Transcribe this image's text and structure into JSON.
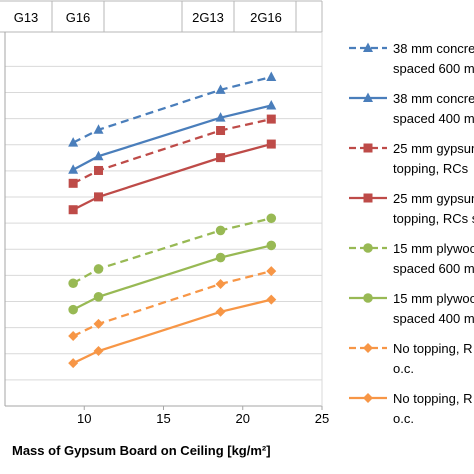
{
  "chart_data": {
    "type": "line",
    "xlabel": "Mass of Gypsum Board on Ceiling [kg/m²]",
    "ylabel": "",
    "xlim": [
      5,
      25
    ],
    "x_ticks": [
      "10",
      "15",
      "20",
      "25"
    ],
    "grid": "horizontal",
    "legend_position": "right",
    "header_labels": [
      "G13",
      "G16",
      "2G13",
      "2G16"
    ],
    "x": [
      9.3,
      10.9,
      18.6,
      21.8
    ],
    "series": [
      {
        "name": "38 mm concre… spaced 600 m…",
        "legend_lines": [
          "38 mm concre",
          "spaced 600 m"
        ],
        "color": "#4a7ebb",
        "dashed": true,
        "marker": "triangle",
        "values": [
          18.45,
          19.35,
          22.15,
          23.05
        ]
      },
      {
        "name": "38 mm concre… spaced 400 m…",
        "legend_lines": [
          "38 mm concre",
          "spaced 400 m"
        ],
        "color": "#4a7ebb",
        "dashed": false,
        "marker": "triangle",
        "values": [
          16.55,
          17.5,
          20.2,
          21.05
        ]
      },
      {
        "name": "25 mm gypsum… topping, RCs…",
        "legend_lines": [
          "25 mm gypsum",
          "topping, RCs"
        ],
        "color": "#be4b48",
        "dashed": true,
        "marker": "square",
        "values": [
          15.6,
          16.5,
          19.3,
          20.1
        ]
      },
      {
        "name": "25 mm gypsum… topping, RCs s…",
        "legend_lines": [
          "25 mm gypsum",
          "topping, RCs s"
        ],
        "color": "#be4b48",
        "dashed": false,
        "marker": "square",
        "values": [
          13.75,
          14.65,
          17.4,
          18.35
        ]
      },
      {
        "name": "15 mm plywoo… spaced 600 m…",
        "legend_lines": [
          "15 mm plywoo",
          "spaced 600 m"
        ],
        "color": "#98b954",
        "dashed": true,
        "marker": "circle",
        "values": [
          8.6,
          9.6,
          12.3,
          13.15
        ]
      },
      {
        "name": "15 mm plywoo… spaced 400 m…",
        "legend_lines": [
          "15 mm plywoo",
          "spaced 400 m"
        ],
        "color": "#98b954",
        "dashed": false,
        "marker": "circle",
        "values": [
          6.75,
          7.65,
          10.4,
          11.25
        ]
      },
      {
        "name": "No topping, R… o.c.",
        "legend_lines": [
          "No topping, R",
          "o.c."
        ],
        "color": "#f79646",
        "dashed": true,
        "marker": "diamond",
        "values": [
          4.9,
          5.75,
          8.55,
          9.45
        ]
      },
      {
        "name": "No topping, R… o.c.",
        "legend_lines": [
          "No topping, R",
          "o.c."
        ],
        "color": "#f79646",
        "dashed": false,
        "marker": "diamond",
        "values": [
          3.0,
          3.85,
          6.6,
          7.45
        ]
      }
    ]
  }
}
